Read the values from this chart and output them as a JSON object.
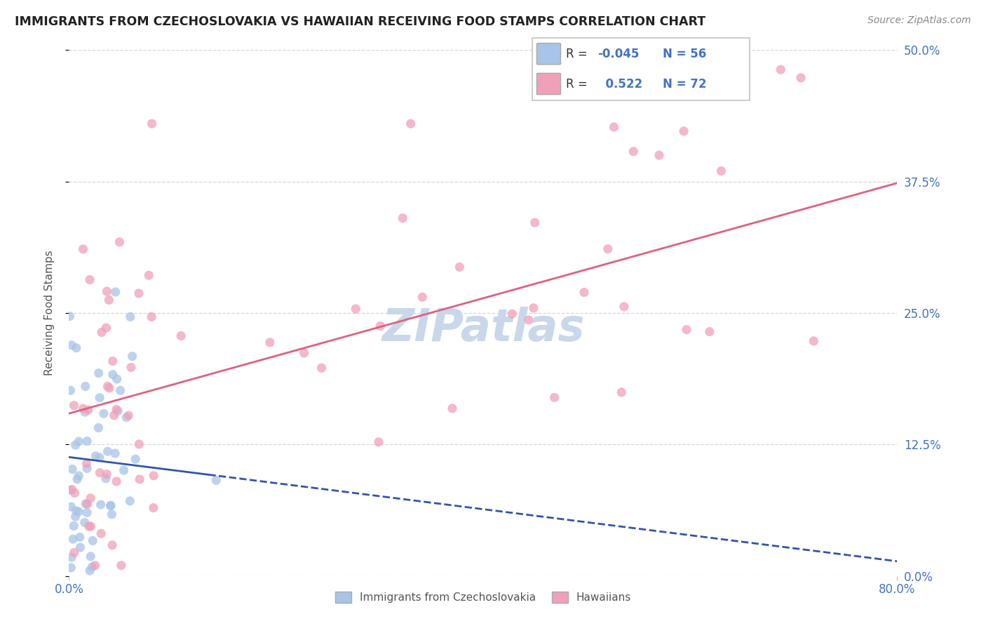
{
  "title": "IMMIGRANTS FROM CZECHOSLOVAKIA VS HAWAIIAN RECEIVING FOOD STAMPS CORRELATION CHART",
  "source": "Source: ZipAtlas.com",
  "ylabel": "Receiving Food Stamps",
  "ytick_vals": [
    0.0,
    12.5,
    25.0,
    37.5,
    50.0
  ],
  "xlim": [
    0.0,
    80.0
  ],
  "ylim": [
    0.0,
    50.0
  ],
  "legend_r_blue": "-0.045",
  "legend_n_blue": "56",
  "legend_r_pink": "0.522",
  "legend_n_pink": "72",
  "watermark": "ZIPatlas",
  "blue_color": "#a8c4e8",
  "pink_color": "#f0a0b8",
  "blue_line_color": "#3355aa",
  "pink_line_color": "#e06080",
  "grid_color": "#cccccc",
  "background_color": "#ffffff",
  "title_color": "#222222",
  "axis_label_color": "#4472c4",
  "watermark_color": "#c8d8ea",
  "legend_text_color": "#333333",
  "source_color": "#888888"
}
